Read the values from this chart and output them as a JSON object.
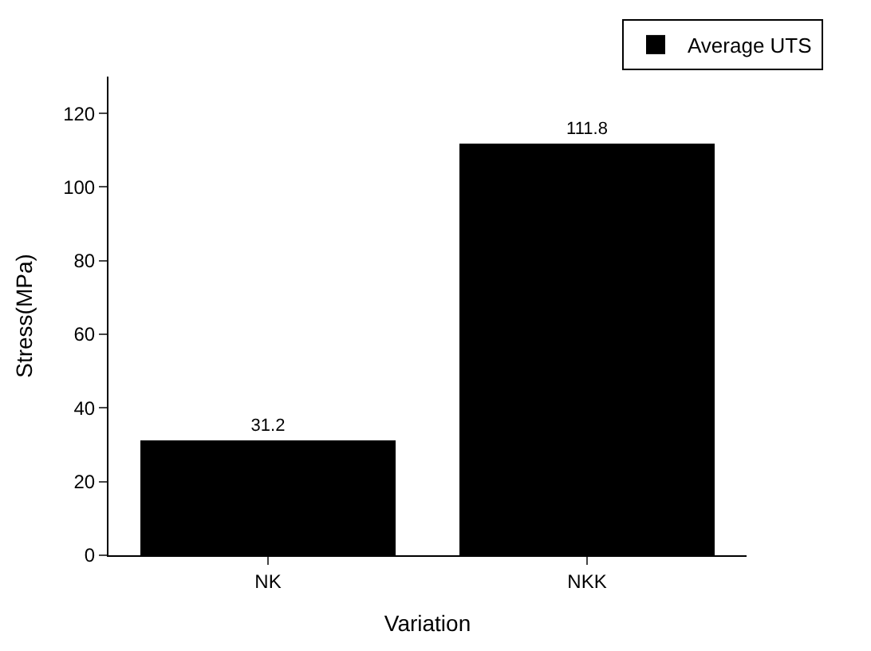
{
  "chart_data": {
    "type": "bar",
    "xlabel": "Variation",
    "ylabel": "Stress(MPa)",
    "categories": [
      "NK",
      "NKK"
    ],
    "series": [
      {
        "name": "Average UTS",
        "color": "#000000",
        "values": [
          31.2,
          111.8
        ]
      }
    ],
    "ylim": [
      0,
      130
    ],
    "yticks": [
      0,
      20,
      40,
      60,
      80,
      100,
      120
    ],
    "data_labels": true,
    "legend": "top right"
  }
}
